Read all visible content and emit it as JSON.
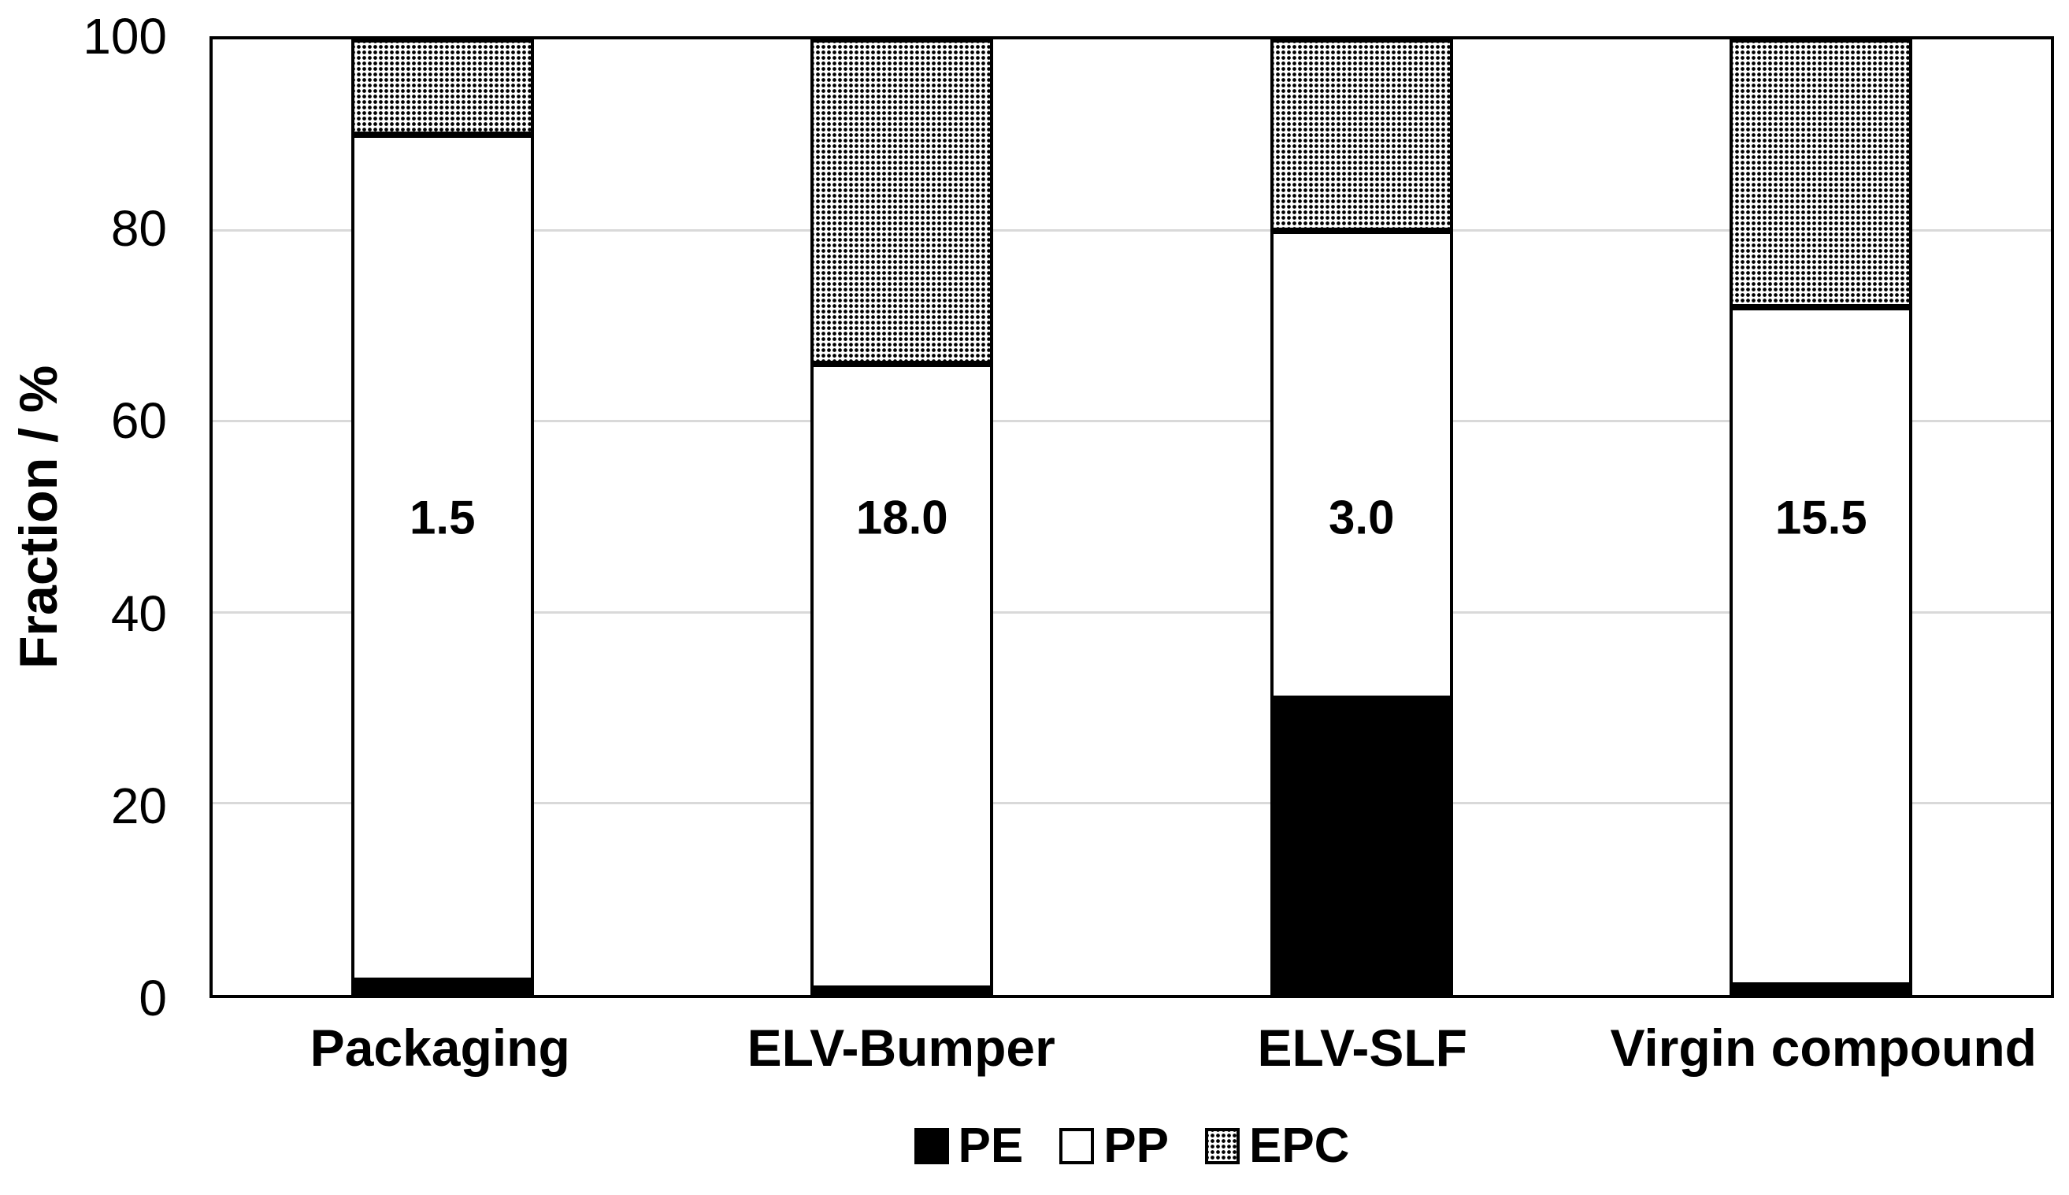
{
  "figure": {
    "background": "#ffffff",
    "text_color": "#000000",
    "frame_color": "#000000"
  },
  "chart_data": {
    "type": "bar",
    "stacked": true,
    "title": "",
    "xlabel": "",
    "ylabel": "Fraction / %",
    "ylim": [
      0,
      100
    ],
    "yticks": [
      0,
      20,
      40,
      60,
      80,
      100
    ],
    "grid": true,
    "gridline_color": "#d9d9d9",
    "categories": [
      "Packaging",
      "ELV-Bumper",
      "ELV-SLF",
      "Virgin compound"
    ],
    "series": [
      {
        "name": "PE",
        "pattern": "solid-black",
        "color": "#000000",
        "values": [
          1.5,
          0.5,
          31,
          1
        ]
      },
      {
        "name": "PP",
        "pattern": "solid-white",
        "color": "#ffffff",
        "values": [
          88.5,
          65.5,
          49,
          71
        ]
      },
      {
        "name": "EPC",
        "pattern": "dotted-black-on-white",
        "color": "#ffffff",
        "values": [
          10,
          34,
          20,
          28
        ]
      }
    ],
    "bar_labels": {
      "text": [
        "1.5",
        "18.0",
        "3.0",
        "15.5"
      ],
      "position": "inside-bar-at-50-percent-height"
    },
    "legend": {
      "position": "bottom-center",
      "entries": [
        "PE",
        "PP",
        "EPC"
      ]
    }
  }
}
